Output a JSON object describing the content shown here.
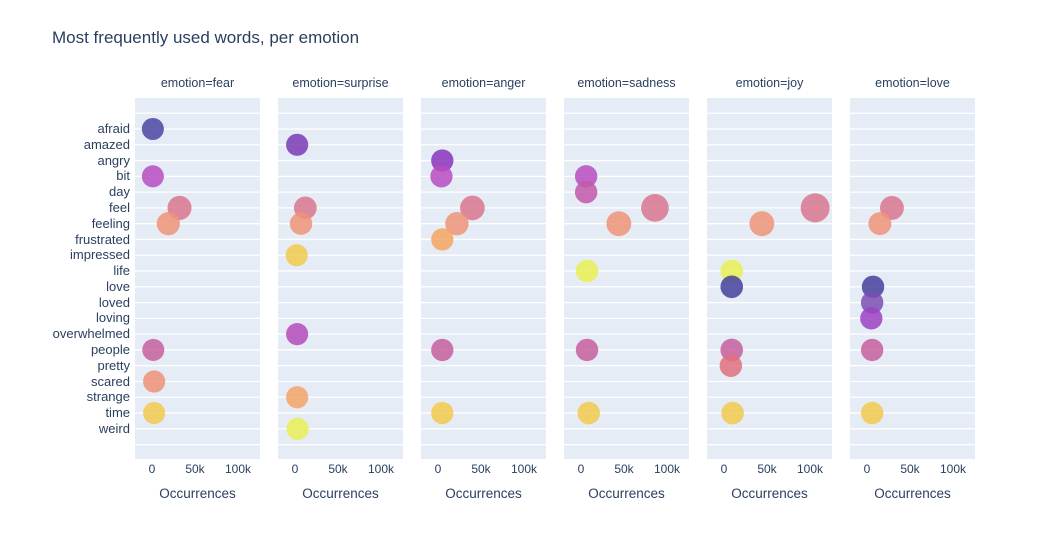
{
  "title": "Most frequently used words, per emotion",
  "colors": {
    "plot_background": "#E5ECF6",
    "gridline": "#ffffff",
    "text": "#2a3f5f"
  },
  "chart_data": {
    "type": "scatter",
    "title": "Most frequently used words, per emotion",
    "layout_hints": {
      "faceted": true,
      "facet_count": 6,
      "grid": "horizontal-white-on-lightblue",
      "marker_opacity": 0.85,
      "marker_size_encodes": "occurrences",
      "x_range": [
        -20000,
        126000
      ]
    },
    "categories": [
      "afraid",
      "amazed",
      "angry",
      "bit",
      "day",
      "feel",
      "feeling",
      "frustrated",
      "impressed",
      "life",
      "love",
      "loved",
      "loving",
      "overwhelmed",
      "people",
      "pretty",
      "scared",
      "strange",
      "time",
      "weird"
    ],
    "x_axis": {
      "title": "Occurrences",
      "tick_labels": [
        "0",
        "50k",
        "100k"
      ],
      "tick_values": [
        0,
        50000,
        100000
      ]
    },
    "word_colors": {
      "afraid": "#4b47a2",
      "amazed": "#7a3bb4",
      "angry": "#8b33bb",
      "bit": "#b84cc0",
      "day": "#c258a9",
      "feel": "#d9778f",
      "feeling": "#ef9478",
      "frustrated": "#f5a660",
      "impressed": "#f3ca4e",
      "life": "#e9f052",
      "love": "#45419c",
      "loved": "#7a4fb2",
      "loving": "#9c42c3",
      "overwhelmed": "#b44abc",
      "people": "#c75f9f",
      "pretty": "#e0707f",
      "scared": "#ee9276",
      "strange": "#f4a566",
      "time": "#f3ca4e",
      "weird": "#e7f054"
    },
    "facets": [
      {
        "title": "emotion=fear",
        "points": [
          {
            "word": "afraid",
            "occurrences": 1000
          },
          {
            "word": "bit",
            "occurrences": 1000
          },
          {
            "word": "feel",
            "occurrences": 32000
          },
          {
            "word": "feeling",
            "occurrences": 19000
          },
          {
            "word": "people",
            "occurrences": 1500
          },
          {
            "word": "scared",
            "occurrences": 2500
          },
          {
            "word": "time",
            "occurrences": 2500
          }
        ]
      },
      {
        "title": "emotion=surprise",
        "points": [
          {
            "word": "amazed",
            "occurrences": 2500
          },
          {
            "word": "feel",
            "occurrences": 12000
          },
          {
            "word": "feeling",
            "occurrences": 7000
          },
          {
            "word": "impressed",
            "occurrences": 2000
          },
          {
            "word": "overwhelmed",
            "occurrences": 2500
          },
          {
            "word": "strange",
            "occurrences": 2500
          },
          {
            "word": "weird",
            "occurrences": 3000
          }
        ]
      },
      {
        "title": "emotion=anger",
        "points": [
          {
            "word": "angry",
            "occurrences": 5000
          },
          {
            "word": "bit",
            "occurrences": 4000
          },
          {
            "word": "feel",
            "occurrences": 40000
          },
          {
            "word": "feeling",
            "occurrences": 22000
          },
          {
            "word": "frustrated",
            "occurrences": 5000
          },
          {
            "word": "people",
            "occurrences": 5000
          },
          {
            "word": "time",
            "occurrences": 5000
          }
        ]
      },
      {
        "title": "emotion=sadness",
        "points": [
          {
            "word": "bit",
            "occurrences": 6000
          },
          {
            "word": "day",
            "occurrences": 6000
          },
          {
            "word": "feel",
            "occurrences": 86000
          },
          {
            "word": "feeling",
            "occurrences": 44000
          },
          {
            "word": "life",
            "occurrences": 7000
          },
          {
            "word": "people",
            "occurrences": 7000
          },
          {
            "word": "time",
            "occurrences": 9000
          }
        ]
      },
      {
        "title": "emotion=joy",
        "points": [
          {
            "word": "feel",
            "occurrences": 106000
          },
          {
            "word": "feeling",
            "occurrences": 44000
          },
          {
            "word": "life",
            "occurrences": 9000
          },
          {
            "word": "love",
            "occurrences": 9000
          },
          {
            "word": "people",
            "occurrences": 9000
          },
          {
            "word": "pretty",
            "occurrences": 8000
          },
          {
            "word": "time",
            "occurrences": 10000
          }
        ]
      },
      {
        "title": "emotion=love",
        "points": [
          {
            "word": "feel",
            "occurrences": 29000
          },
          {
            "word": "feeling",
            "occurrences": 15000
          },
          {
            "word": "love",
            "occurrences": 7000
          },
          {
            "word": "loved",
            "occurrences": 6000
          },
          {
            "word": "loving",
            "occurrences": 5000
          },
          {
            "word": "people",
            "occurrences": 6000
          },
          {
            "word": "time",
            "occurrences": 6000
          }
        ]
      }
    ]
  }
}
